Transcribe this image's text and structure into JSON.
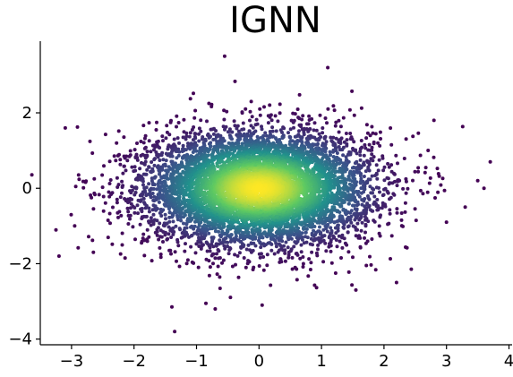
{
  "chart_data": {
    "type": "scatter",
    "title": "IGNN",
    "xlabel": "",
    "ylabel": "",
    "xlim": [
      -3.5,
      4.05
    ],
    "ylim": [
      -4.15,
      3.9
    ],
    "xticks": [
      -3,
      -2,
      -1,
      0,
      1,
      2,
      3,
      4
    ],
    "yticks": [
      -4,
      -2,
      0,
      2
    ],
    "xtick_labels": [
      "−3",
      "−2",
      "−1",
      "0",
      "1",
      "2",
      "3",
      "4"
    ],
    "ytick_labels": [
      "−4",
      "−2",
      "0",
      "2"
    ],
    "grid": false,
    "legend": "none",
    "colormap": "viridis (point density)",
    "distribution": {
      "shape": "bivariate normal cloud",
      "center": [
        0.0,
        0.0
      ],
      "x_std": 0.9,
      "y_std": 0.75,
      "n_points_approx": 20000
    },
    "notable_outliers": [
      [
        3.7,
        0.7
      ],
      [
        3.6,
        0.0
      ],
      [
        3.3,
        -0.5
      ],
      [
        3.5,
        0.2
      ],
      [
        3.0,
        -0.9
      ],
      [
        -3.2,
        -1.8
      ],
      [
        -3.1,
        1.6
      ],
      [
        -2.95,
        -1.0
      ],
      [
        -2.65,
        -1.7
      ],
      [
        -1.35,
        -3.8
      ],
      [
        -0.55,
        3.5
      ],
      [
        1.1,
        3.2
      ],
      [
        0.05,
        -3.1
      ],
      [
        -0.85,
        -3.05
      ],
      [
        1.55,
        -2.7
      ],
      [
        2.2,
        -2.5
      ],
      [
        2.8,
        1.8
      ],
      [
        -0.7,
        -3.2
      ]
    ]
  },
  "colors": {
    "low_density": "#440154",
    "mid_low": "#3b528b",
    "mid": "#21918c",
    "mid_high": "#5ec962",
    "high_density": "#fde725"
  }
}
